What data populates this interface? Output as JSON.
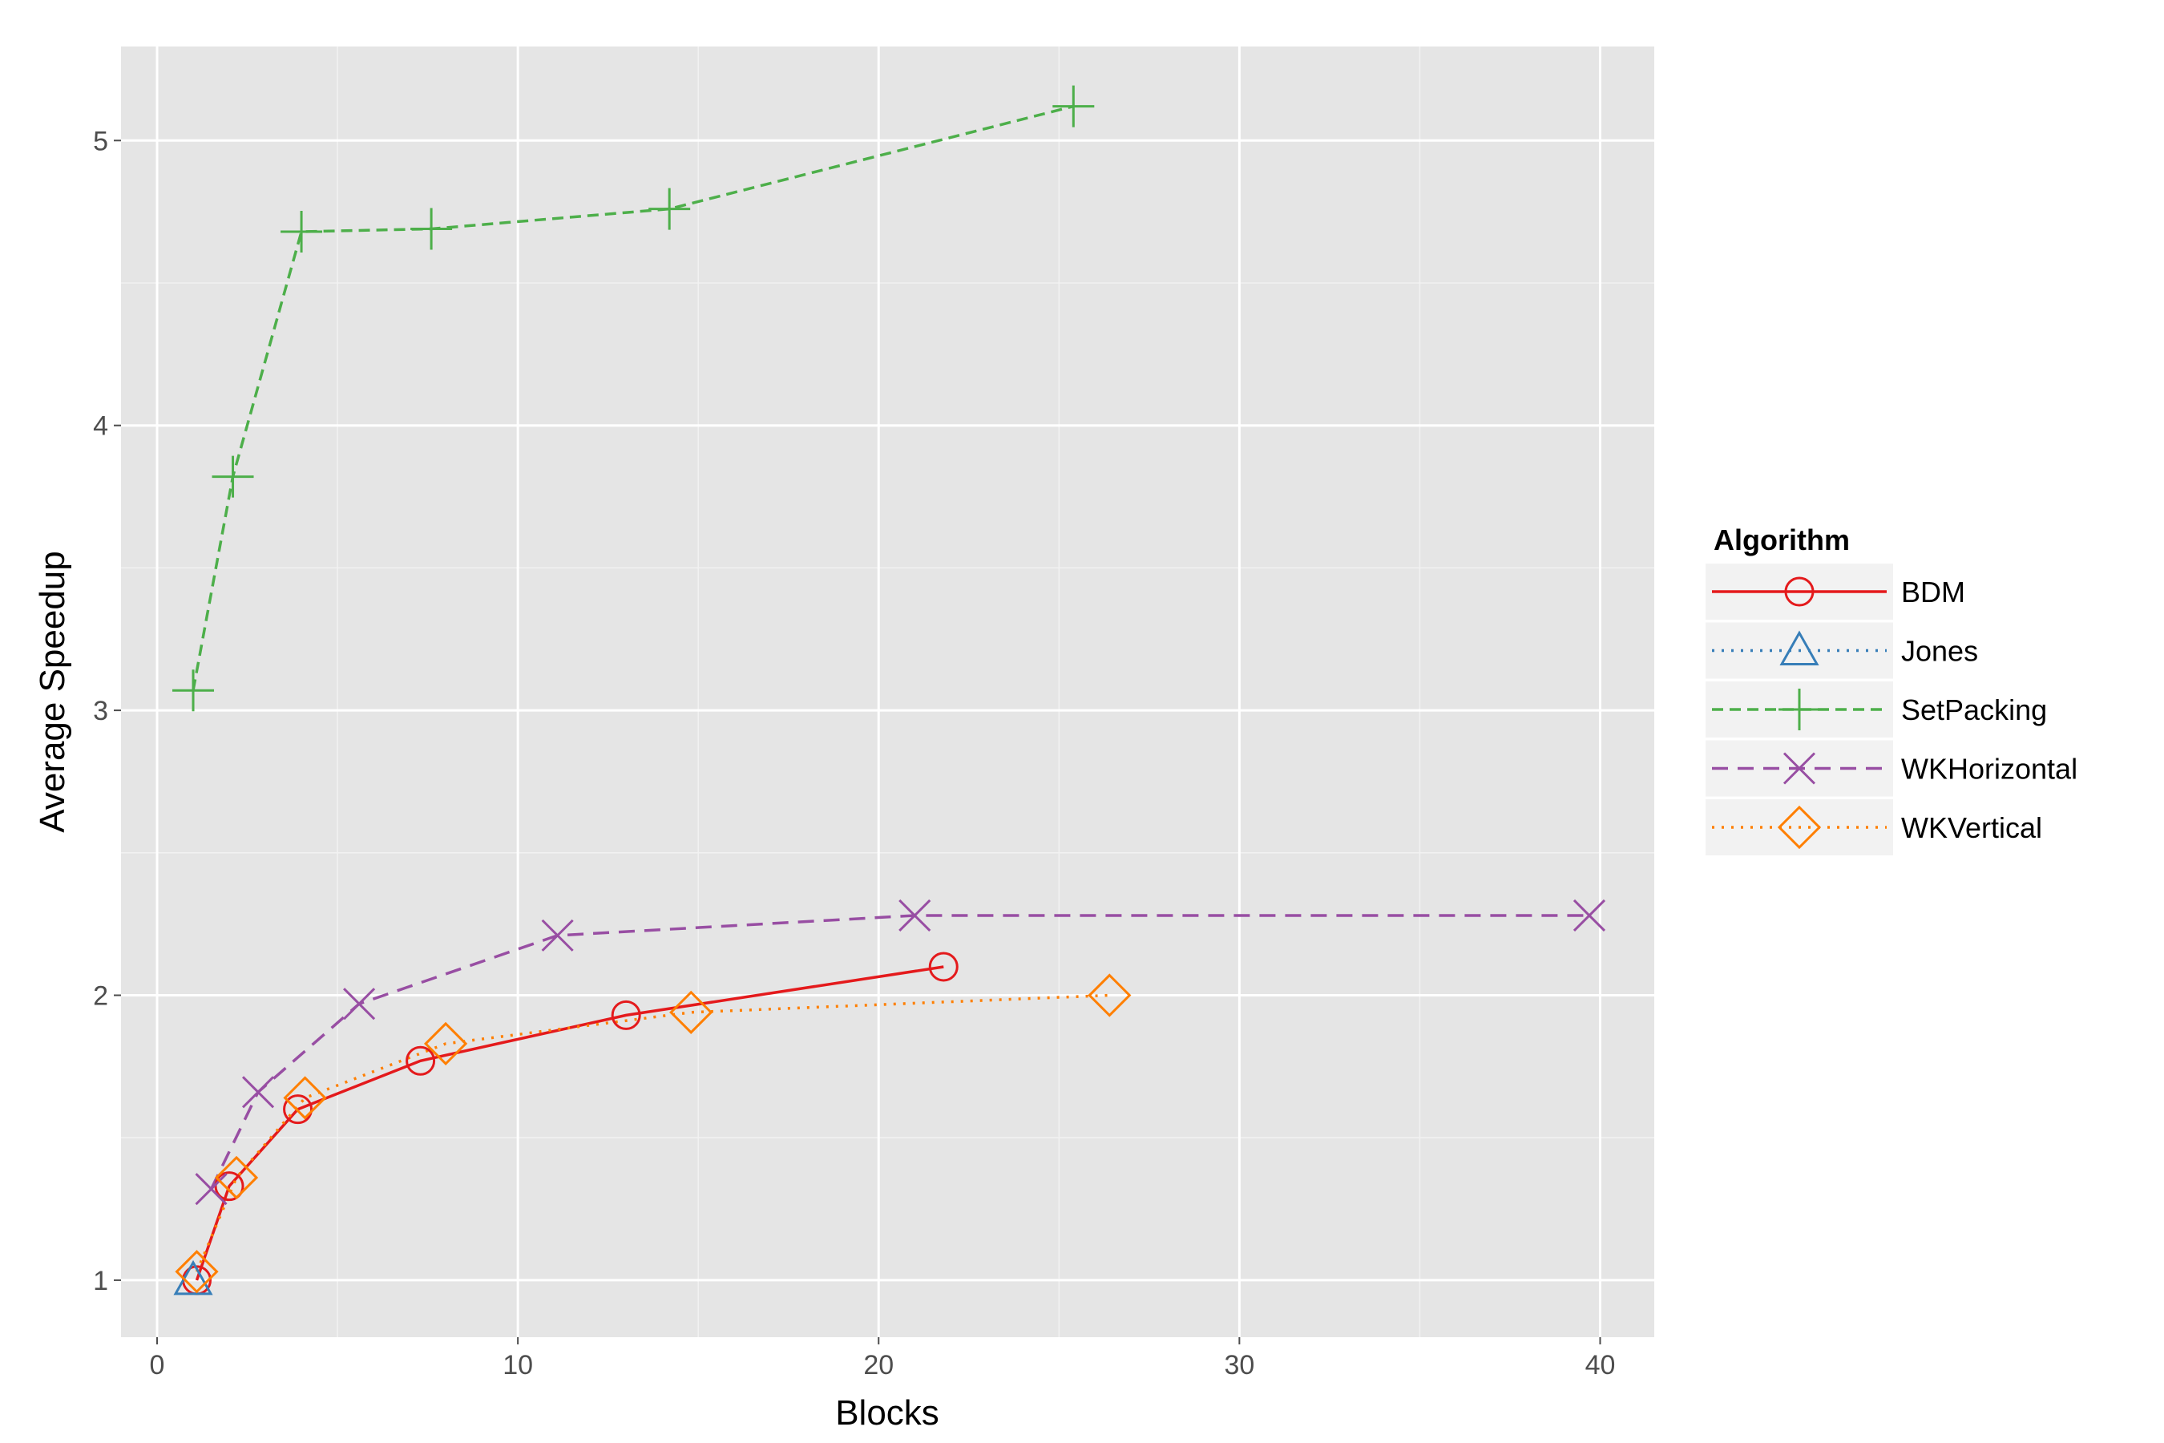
{
  "chart_data": {
    "type": "line",
    "xlabel": "Blocks",
    "ylabel": "Average Speedup",
    "xlim": [
      -1,
      41.5
    ],
    "ylim": [
      0.8,
      5.33
    ],
    "x_ticks": [
      0,
      10,
      20,
      30,
      40
    ],
    "y_ticks": [
      1,
      2,
      3,
      4,
      5
    ],
    "x_tick_labels": [
      "0",
      "10",
      "20",
      "30",
      "40"
    ],
    "y_tick_labels": [
      "1",
      "2",
      "3",
      "4",
      "5"
    ],
    "grid": true,
    "background": "#e5e5e5",
    "legend": {
      "title": "Algorithm",
      "position": "right"
    },
    "series": [
      {
        "name": "BDM",
        "color": "#e41a1c",
        "marker": "circle",
        "dash": "solid",
        "x": [
          1.1,
          2.0,
          3.9,
          7.3,
          13.0,
          21.8
        ],
        "y": [
          1.0,
          1.33,
          1.6,
          1.77,
          1.93,
          2.1
        ]
      },
      {
        "name": "Jones",
        "color": "#377eb8",
        "marker": "triangle",
        "dash": "dotted",
        "x": [
          1.0
        ],
        "y": [
          1.0
        ]
      },
      {
        "name": "SetPacking",
        "color": "#4daf4a",
        "marker": "plus",
        "dash": "dashed",
        "x": [
          1.0,
          2.1,
          4.0,
          7.6,
          14.2,
          25.4
        ],
        "y": [
          3.07,
          3.82,
          4.68,
          4.69,
          4.76,
          5.12
        ]
      },
      {
        "name": "WKHorizontal",
        "color": "#984ea3",
        "marker": "cross",
        "dash": "longdash",
        "x": [
          1.5,
          2.8,
          5.6,
          11.1,
          21.0,
          39.7
        ],
        "y": [
          1.32,
          1.66,
          1.97,
          2.21,
          2.28,
          2.28
        ]
      },
      {
        "name": "WKVertical",
        "color": "#ff7f00",
        "marker": "diamond",
        "dash": "dotted",
        "x": [
          1.1,
          2.2,
          4.1,
          8.0,
          14.8,
          26.4
        ],
        "y": [
          1.03,
          1.36,
          1.64,
          1.83,
          1.94,
          2.0
        ]
      }
    ]
  }
}
